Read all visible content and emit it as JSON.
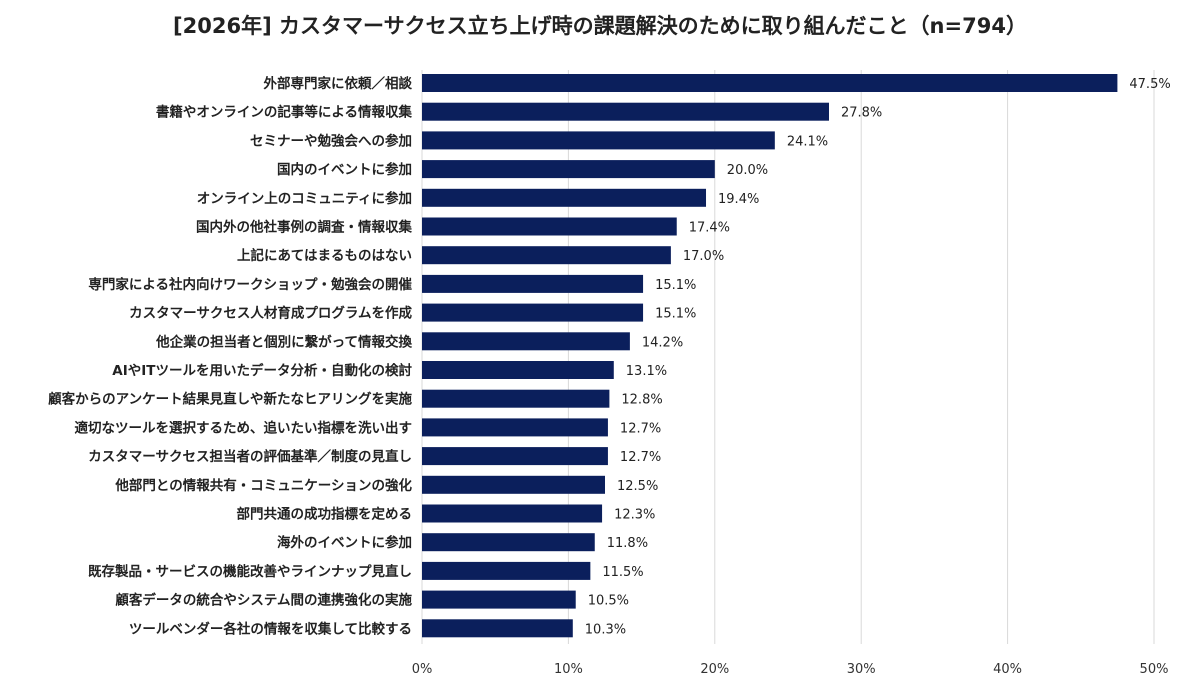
{
  "chart_data": {
    "type": "bar",
    "orientation": "horizontal",
    "title": "[2026年] カスタマーサクセス立ち上げ時の課題解決のために取り組んだこと（n=794）",
    "categories": [
      "外部専門家に依頼／相談",
      "書籍やオンラインの記事等による情報収集",
      "セミナーや勉強会への参加",
      "国内のイベントに参加",
      "オンライン上のコミュニティに参加",
      "国内外の他社事例の調査・情報収集",
      "上記にあてはまるものはない",
      "専門家による社内向けワークショップ・勉強会の開催",
      "カスタマーサクセス人材育成プログラムを作成",
      "他企業の担当者と個別に繋がって情報交換",
      "AIやITツールを用いたデータ分析・自動化の検討",
      "顧客からのアンケート結果見直しや新たなヒアリングを実施",
      "適切なツールを選択するため、追いたい指標を洗い出す",
      "カスタマーサクセス担当者の評価基準／制度の見直し",
      "他部門との情報共有・コミュニケーションの強化",
      "部門共通の成功指標を定める",
      "海外のイベントに参加",
      "既存製品・サービスの機能改善やラインナップ見直し",
      "顧客データの統合やシステム間の連携強化の実施",
      "ツールベンダー各社の情報を収集して比較する"
    ],
    "values": [
      47.5,
      27.8,
      24.1,
      20.0,
      19.4,
      17.4,
      17.0,
      15.1,
      15.1,
      14.2,
      13.1,
      12.8,
      12.7,
      12.7,
      12.5,
      12.3,
      11.8,
      11.5,
      10.5,
      10.3
    ],
    "value_labels": [
      "47.5%",
      "27.8%",
      "24.1%",
      "20.0%",
      "19.4%",
      "17.4%",
      "17.0%",
      "15.1%",
      "15.1%",
      "14.2%",
      "13.1%",
      "12.8%",
      "12.7%",
      "12.7%",
      "12.5%",
      "12.3%",
      "11.8%",
      "11.5%",
      "10.5%",
      "10.3%"
    ],
    "x_ticks": [
      0,
      10,
      20,
      30,
      40,
      50
    ],
    "x_tick_labels": [
      "0%",
      "10%",
      "20%",
      "30%",
      "40%",
      "50%"
    ],
    "xlim": [
      0,
      50
    ],
    "grid": true,
    "legend": "none",
    "bar_color": "#0b1f5c",
    "grid_color": "#d9d9d9"
  }
}
